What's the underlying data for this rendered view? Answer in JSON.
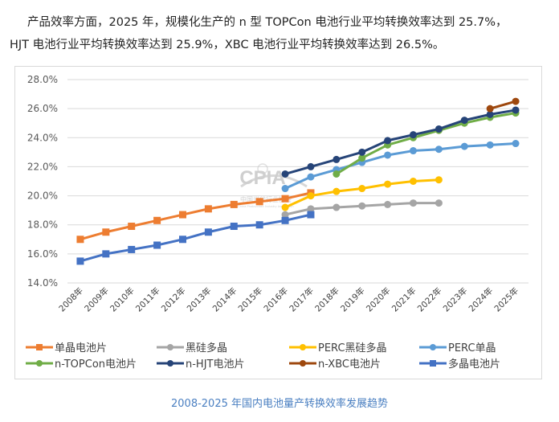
{
  "paragraph": {
    "line1": "产品效率方面，2025 年，规模化生产的 n 型 TOPCon 电池行业平均转换效率达到 25.7%，",
    "line2": "HJT 电池行业平均转换效率达到 25.9%，XBC 电池行业平均转换效率达到 26.5%。"
  },
  "watermark": {
    "logo": "CPIA",
    "name": "中国光伏行业协会",
    "name_en": "China Photovoltaic Industry Association"
  },
  "caption": "2008-2025 年国内电池量产转换效率发展趋势",
  "chart_data": {
    "type": "line",
    "title": "",
    "xlabel": "",
    "ylabel": "",
    "ylim": [
      14.0,
      28.0
    ],
    "yticks": [
      14.0,
      16.0,
      18.0,
      20.0,
      22.0,
      24.0,
      26.0,
      28.0
    ],
    "ytick_format": "percent_1dp",
    "grid": "horizontal",
    "legend_position": "bottom",
    "categories": [
      "2008年",
      "2009年",
      "2010年",
      "2011年",
      "2012年",
      "2013年",
      "2014年",
      "2015年",
      "2016年",
      "2017年",
      "2018年",
      "2019年",
      "2020年",
      "2021年",
      "2022年",
      "2023年",
      "2024年",
      "2025年"
    ],
    "series": [
      {
        "name": "单晶电池片",
        "color": "#ED7D31",
        "marker": "square",
        "values": [
          17.0,
          17.5,
          17.9,
          18.3,
          18.7,
          19.1,
          19.4,
          19.6,
          19.8,
          20.2,
          null,
          null,
          null,
          null,
          null,
          null,
          null,
          null
        ]
      },
      {
        "name": "黑硅多晶",
        "color": "#A5A5A5",
        "marker": "circle",
        "values": [
          null,
          null,
          null,
          null,
          null,
          null,
          null,
          null,
          18.7,
          19.1,
          19.2,
          19.3,
          19.4,
          19.5,
          19.5,
          null,
          null,
          null
        ]
      },
      {
        "name": "PERC黑硅多晶",
        "color": "#FFC000",
        "marker": "circle",
        "values": [
          null,
          null,
          null,
          null,
          null,
          null,
          null,
          null,
          19.2,
          20.0,
          20.3,
          20.5,
          20.8,
          21.0,
          21.1,
          null,
          null,
          null
        ]
      },
      {
        "name": "PERC单晶",
        "color": "#5B9BD5",
        "marker": "circle",
        "values": [
          null,
          null,
          null,
          null,
          null,
          null,
          null,
          null,
          20.5,
          21.3,
          21.8,
          22.3,
          22.8,
          23.1,
          23.2,
          23.4,
          23.5,
          23.6
        ]
      },
      {
        "name": "n-TOPCon电池片",
        "color": "#70AD47",
        "marker": "circle",
        "values": [
          null,
          null,
          null,
          null,
          null,
          null,
          null,
          null,
          null,
          null,
          21.5,
          22.6,
          23.5,
          24.0,
          24.5,
          25.0,
          25.4,
          25.7
        ]
      },
      {
        "name": "n-HJT电池片",
        "color": "#264478",
        "marker": "circle",
        "values": [
          null,
          null,
          null,
          null,
          null,
          null,
          null,
          null,
          21.5,
          22.0,
          22.5,
          23.0,
          23.8,
          24.2,
          24.6,
          25.2,
          25.6,
          25.9
        ]
      },
      {
        "name": "n-XBC电池片",
        "color": "#9E480E",
        "marker": "circle",
        "values": [
          null,
          null,
          null,
          null,
          null,
          null,
          null,
          null,
          null,
          null,
          null,
          null,
          null,
          null,
          null,
          null,
          26.0,
          26.5
        ]
      },
      {
        "name": "多晶电池片",
        "color": "#4472C4",
        "marker": "square",
        "values": [
          15.5,
          16.0,
          16.3,
          16.6,
          17.0,
          17.5,
          17.9,
          18.0,
          18.3,
          18.7,
          null,
          null,
          null,
          null,
          null,
          null,
          null,
          null
        ]
      }
    ]
  }
}
